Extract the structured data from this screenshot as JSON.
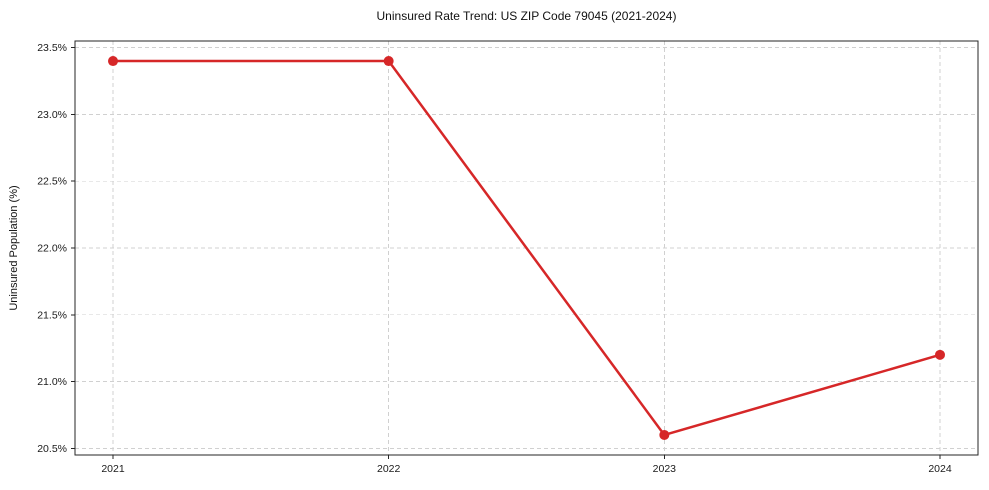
{
  "chart_data": {
    "type": "line",
    "title": "Uninsured Rate Trend: US ZIP Code 79045 (2021-2024)",
    "xlabel": "",
    "ylabel": "Uninsured Population (%)",
    "categories": [
      "2021",
      "2022",
      "2023",
      "2024"
    ],
    "x": [
      2021,
      2022,
      2023,
      2024
    ],
    "series": [
      {
        "name": "Uninsured Population (%)",
        "values": [
          23.4,
          23.4,
          20.6,
          21.2
        ]
      }
    ],
    "y_ticks": [
      20.5,
      21.0,
      21.5,
      22.0,
      22.5,
      23.0,
      23.5
    ],
    "y_tick_suffix": "%",
    "ylim": [
      20.45,
      23.55
    ],
    "grid": true,
    "grid_style": "dashed",
    "legend_position": "none",
    "line_color": "#d62728",
    "marker": "circle",
    "grid_color": "#d0d0d0",
    "border_color": "#262626",
    "background_color": "#ffffff"
  }
}
